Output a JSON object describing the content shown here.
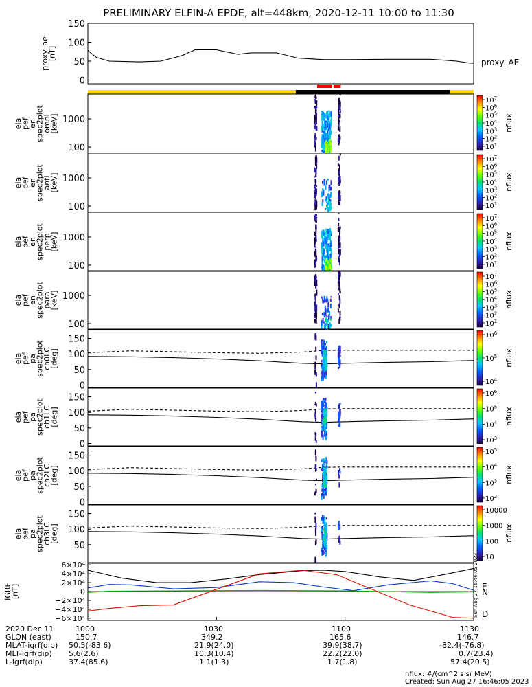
{
  "title": "PRELIMINARY ELFIN-A EPDE, alt=448km, 2020-12-11 10:00 to 11:30",
  "colors": {
    "yellow_bar": "#ffd800",
    "black_bar": "#000000",
    "red_marker": "#ff0000",
    "igrf_black": "#000000",
    "igrf_blue": "#0033cc",
    "igrf_green": "#00aa00",
    "igrf_red": "#dd1100"
  },
  "time_axis": {
    "start_min": 0,
    "end_min": 90,
    "ticks": [
      "1000",
      "1030",
      "1100",
      "1130"
    ]
  },
  "proxy_ae_panel": {
    "ylabel": "proxy_ae\n[nT]",
    "legend": "proxy_AE",
    "ylim": [
      -10,
      150
    ],
    "y_ticks": [
      "150",
      "100",
      "50",
      "0"
    ],
    "x_min": [
      0,
      2,
      5,
      12,
      17,
      22,
      25,
      30,
      35,
      38,
      44,
      49,
      55,
      60,
      70,
      80,
      86,
      89,
      90
    ],
    "values": [
      78,
      60,
      50,
      48,
      50,
      65,
      80,
      80,
      68,
      72,
      72,
      58,
      54,
      54,
      55,
      55,
      50,
      45,
      45
    ]
  },
  "orbit_bar": {
    "segments": [
      {
        "from_min": 0,
        "to_min": 48.5,
        "color": "yellow"
      },
      {
        "from_min": 48.5,
        "to_min": 84.5,
        "color": "black"
      },
      {
        "from_min": 84.5,
        "to_min": 90,
        "color": "yellow"
      }
    ],
    "red_markers": [
      [
        53.5,
        57.0
      ],
      [
        57.3,
        59.0
      ]
    ]
  },
  "energy_panels": [
    {
      "ylabel": "ela\npef\nen\nspec2plot\nomni\n[keV]",
      "y_ticks": [
        "1000",
        "100"
      ],
      "cbar_ticks": [
        "10^7",
        "10^6",
        "10^5",
        "10^4",
        "10^3",
        "10^2",
        "10^1"
      ],
      "cbar_label": "nflux"
    },
    {
      "ylabel": "ela\npef\nen\nspec2plot\nanti\n[keV]",
      "y_ticks": [
        "1000",
        "100"
      ],
      "cbar_ticks": [
        "10^7",
        "10^6",
        "10^5",
        "10^4",
        "10^3",
        "10^2",
        "10^1"
      ],
      "cbar_label": "nflux"
    },
    {
      "ylabel": "ela\npef\nen\nspec2plot\nperp\n[keV]",
      "y_ticks": [
        "1000",
        "100"
      ],
      "cbar_ticks": [
        "10^7",
        "10^6",
        "10^5",
        "10^4",
        "10^3",
        "10^2",
        "10^1"
      ],
      "cbar_label": "nflux"
    },
    {
      "ylabel": "ela\npef\nen\nspec2plot\npara\n[keV]",
      "y_ticks": [
        "1000",
        "100"
      ],
      "cbar_ticks": [
        "10^7",
        "10^6",
        "10^5",
        "10^4",
        "10^3",
        "10^2",
        "10^1"
      ],
      "cbar_label": "nflux"
    }
  ],
  "pitch_panels": [
    {
      "ylabel": "ela\npef\npa\nspec2plot\nch0LC\n[deg]",
      "y_ticks": [
        "150",
        "100",
        "50",
        "0"
      ],
      "cbar_ticks": [
        "10^6",
        "10^5",
        "10^4"
      ],
      "cbar_label": "nflux"
    },
    {
      "ylabel": "ela\npef\npa\nspec2plot\nch1LC\n[deg]",
      "y_ticks": [
        "150",
        "100",
        "50",
        "0"
      ],
      "cbar_ticks": [
        "10^6",
        "10^5",
        "10^4",
        "10^3"
      ],
      "cbar_label": "nflux"
    },
    {
      "ylabel": "ela\npef\npa\nspec2plot\nch2LC\n[deg]",
      "y_ticks": [
        "150",
        "100",
        "50",
        "0"
      ],
      "cbar_ticks": [
        "10^5",
        "10^4",
        "10^3",
        "10^2"
      ],
      "cbar_label": "nflux"
    },
    {
      "ylabel": "ela\npef\npa\nspec2plot\nch3LC\n[deg]",
      "y_ticks": [
        "150",
        "100",
        "50"
      ],
      "cbar_ticks": [
        "10000",
        "1000",
        "100",
        "10"
      ],
      "cbar_label": "nflux"
    }
  ],
  "pitch_lines": {
    "ylim": [
      -10,
      180
    ],
    "dashed_x_min": [
      0,
      10,
      20,
      30,
      40,
      50,
      55,
      60,
      70,
      80,
      90
    ],
    "dashed_deg": [
      104,
      110,
      107,
      104,
      102,
      106,
      111,
      112,
      112,
      112,
      112
    ],
    "solid_x_min": [
      0,
      10,
      20,
      30,
      40,
      50,
      55,
      60,
      70,
      80,
      90
    ],
    "solid_deg": [
      92,
      91,
      88,
      84,
      78,
      70,
      68,
      70,
      73,
      75,
      79
    ]
  },
  "igrf_panel": {
    "ylabel": "IGRF\n[nT]",
    "y_ticks": [
      "6×10⁴",
      "4×10⁴",
      "2×10⁴",
      "0",
      "−2×10⁴",
      "−4×10⁴",
      "−6×10⁴"
    ],
    "ylim": [
      -65000,
      65000
    ],
    "labels": [
      "E",
      "N",
      "D"
    ],
    "side_text": "Sun Aug 27 16:46:05 2023",
    "series": [
      {
        "name": "black",
        "x_min": [
          0,
          8,
          16,
          24,
          32,
          40,
          50,
          55,
          60,
          68,
          76,
          84,
          90
        ],
        "values": [
          48000,
          30000,
          20000,
          20000,
          28000,
          38000,
          47000,
          48000,
          45000,
          33000,
          25000,
          40000,
          52000
        ]
      },
      {
        "name": "blue",
        "x_min": [
          0,
          5,
          10,
          20,
          30,
          40,
          48,
          55,
          62,
          70,
          80,
          85,
          90
        ],
        "values": [
          8000,
          16000,
          15000,
          6000,
          9000,
          22000,
          20000,
          10000,
          2000,
          15000,
          24000,
          18000,
          3000
        ]
      },
      {
        "name": "green",
        "x_min": [
          0,
          5,
          20,
          40,
          60,
          80,
          90
        ],
        "values": [
          -2000,
          1000,
          1500,
          2500,
          1500,
          -2000,
          -1000
        ]
      },
      {
        "name": "red",
        "x_min": [
          0,
          5,
          12,
          20,
          30,
          40,
          50,
          58,
          65,
          75,
          85,
          90
        ],
        "values": [
          -44000,
          -38000,
          -32000,
          -30000,
          5000,
          40000,
          48000,
          38000,
          10000,
          -30000,
          -58000,
          -60000
        ]
      }
    ]
  },
  "footer_rows": [
    [
      "2020 Dec 11",
      "1000",
      "1030",
      "1100",
      "1130"
    ],
    [
      "GLON (east)",
      "150.7",
      "349.2",
      "165.6",
      "146.7"
    ],
    [
      "MLAT-igrf(dip)",
      "50.5(-83.6)",
      "21.9(24.0)",
      "39.9(38.7)",
      "-82.4(-76.8)"
    ],
    [
      "MLT-igrf(dip)",
      "5.6(2.6)",
      "10.3(10.4)",
      "22.2(22.0)",
      "0.7(23.4)"
    ],
    [
      "L-igrf(dip)",
      "37.4(85.6)",
      "1.1(1.3)",
      "1.7(1.8)",
      "57.4(20.5)"
    ]
  ],
  "nflux_units": "nflux: #/(cm^2 s sr MeV)",
  "created": "Created: Sun Aug 27 16:46:05 2023"
}
